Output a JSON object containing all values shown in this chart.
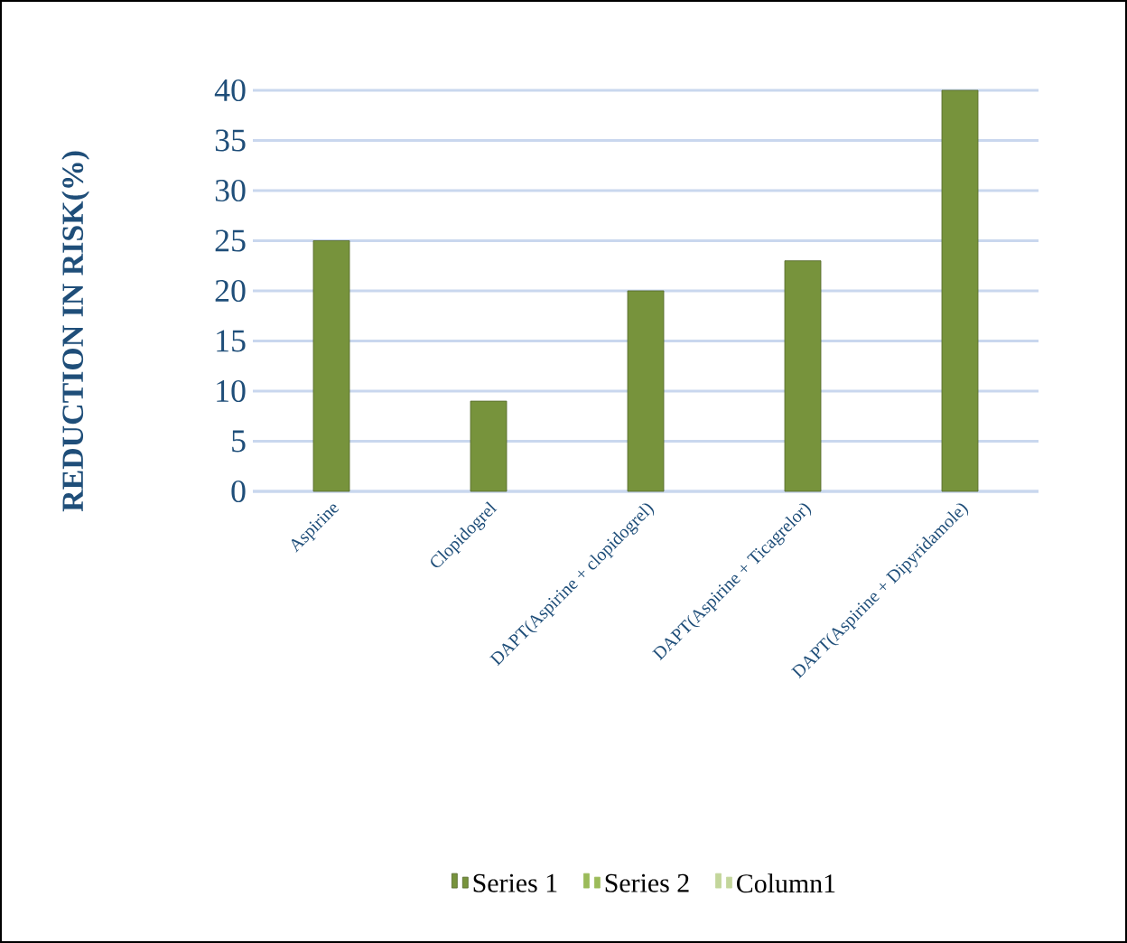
{
  "chart_data": {
    "type": "bar",
    "ylabel": "REDUCTION IN RISK(%)",
    "categories": [
      "Aspirine",
      "Clopidogrel",
      "DAPT(Aspirine + clopidogrel)",
      "DAPT(Aspirine + Ticagrelor)",
      "DAPT(Aspirine + Dipyridamole)"
    ],
    "series": [
      {
        "name": "Series 1",
        "color": "#77933c",
        "values": [
          25,
          9,
          20,
          23,
          40
        ]
      },
      {
        "name": "Series 2",
        "color": "#9bbb59",
        "values": [
          null,
          null,
          null,
          null,
          null
        ]
      },
      {
        "name": "Column1",
        "color": "#c3d69b",
        "values": [
          null,
          null,
          null,
          null,
          null
        ]
      }
    ],
    "ylim": [
      0,
      40
    ],
    "yticks": [
      0,
      5,
      10,
      15,
      20,
      25,
      30,
      35,
      40
    ],
    "grid": "y",
    "legend": "bottom"
  }
}
